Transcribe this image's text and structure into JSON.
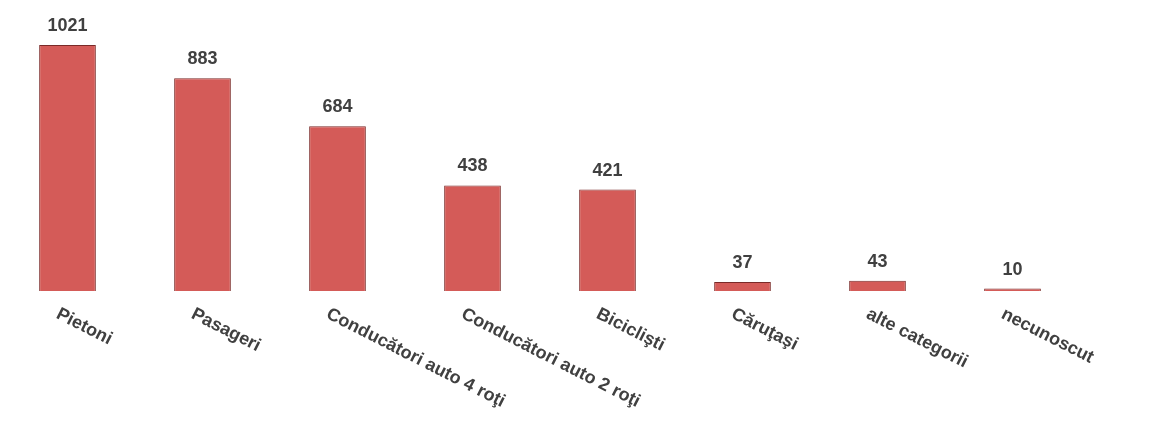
{
  "chart_data": {
    "type": "bar",
    "categories": [
      "Pietoni",
      "Pasageri",
      "Conducători auto 4 roţi",
      "Conducători auto 2 roţi",
      "Biciclişti",
      "Căruţaşi",
      "alte categorii",
      "necunoscut"
    ],
    "values": [
      1021,
      883,
      684,
      438,
      421,
      37,
      43,
      10
    ],
    "color": "#d45b58",
    "data_labels": true
  }
}
